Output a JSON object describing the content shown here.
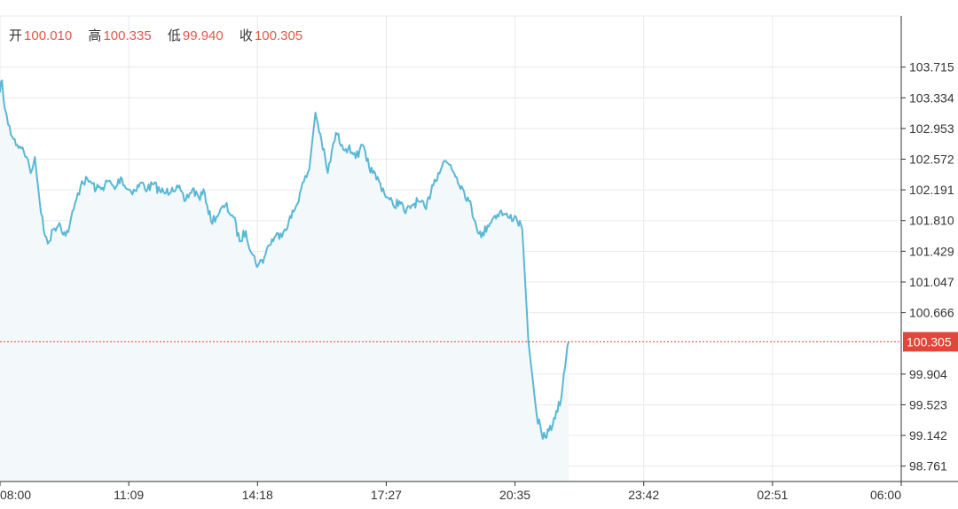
{
  "ohlc": {
    "open_label": "开",
    "open_value": "100.010",
    "high_label": "高",
    "high_value": "100.335",
    "low_label": "低",
    "low_value": "99.940",
    "close_label": "收",
    "close_value": "100.305"
  },
  "colors": {
    "line": "#5ab8d4",
    "area": "#f3f8fb",
    "grid": "#e7eaee",
    "last_price": "#e0473a",
    "axis": "#333333"
  },
  "chart_data": {
    "type": "area",
    "title": "",
    "xlabel": "",
    "ylabel": "",
    "x_tick_labels": [
      "08:00",
      "11:09",
      "14:18",
      "17:27",
      "20:35",
      "23:42",
      "02:51",
      "06:00"
    ],
    "y_tick_labels": [
      "103.715",
      "103.334",
      "102.953",
      "102.572",
      "102.191",
      "101.810",
      "101.429",
      "101.047",
      "100.666",
      "99.904",
      "99.523",
      "99.142",
      "98.761"
    ],
    "y_tick_values": [
      103.715,
      103.334,
      102.953,
      102.572,
      102.191,
      101.81,
      101.429,
      101.047,
      100.666,
      99.904,
      99.523,
      99.142,
      98.761
    ],
    "ylim": [
      98.57,
      104.35
    ],
    "x_range_hours": [
      0,
      22
    ],
    "last_price": 100.305,
    "last_price_label": "100.305",
    "grid": true,
    "series": [
      {
        "x": [
          0.0,
          0.05,
          0.12,
          0.2,
          0.3,
          0.42,
          0.55,
          0.65,
          0.75,
          0.85,
          1.0,
          1.1,
          1.2,
          1.3,
          1.45,
          1.6,
          1.7,
          1.8,
          2.0,
          2.2,
          2.35,
          2.5,
          2.65,
          2.8,
          2.95,
          3.1,
          3.3,
          3.45,
          3.6,
          3.75,
          3.9,
          4.05,
          4.2,
          4.35,
          4.5,
          4.7,
          4.85,
          5.0,
          5.15,
          5.35,
          5.5,
          5.7,
          5.85,
          6.0,
          6.15,
          6.3,
          6.45,
          6.55,
          6.7,
          6.85,
          6.95,
          7.05,
          7.2,
          7.35,
          7.55,
          7.7,
          7.85,
          8.0,
          8.2,
          8.35,
          8.5,
          8.65,
          8.75,
          8.85,
          8.95,
          9.1,
          9.25,
          9.45,
          9.6,
          9.75,
          9.9,
          10.05,
          10.2,
          10.4,
          10.55,
          10.7,
          10.85,
          11.0,
          11.15,
          11.3,
          11.45,
          11.6,
          11.75,
          11.9,
          12.05,
          12.2,
          12.4,
          12.6,
          12.75,
          12.9,
          13.1,
          13.25,
          13.4,
          13.55,
          13.7,
          13.76,
          13.82,
          13.85,
          13.88
        ],
        "y": [
          103.4,
          103.55,
          103.2,
          103.0,
          102.85,
          102.75,
          102.72,
          102.6,
          102.4,
          102.6,
          101.9,
          101.62,
          101.55,
          101.7,
          101.78,
          101.62,
          101.75,
          101.95,
          102.3,
          102.3,
          102.2,
          102.22,
          102.3,
          102.2,
          102.35,
          102.2,
          102.18,
          102.28,
          102.2,
          102.26,
          102.18,
          102.15,
          102.22,
          102.22,
          102.05,
          102.2,
          102.1,
          102.15,
          101.8,
          101.9,
          102.0,
          101.85,
          101.55,
          101.68,
          101.4,
          101.25,
          101.35,
          101.5,
          101.6,
          101.65,
          101.7,
          101.8,
          101.95,
          102.2,
          102.45,
          103.15,
          102.8,
          102.4,
          102.9,
          102.75,
          102.7,
          102.65,
          102.6,
          102.75,
          102.55,
          102.4,
          102.3,
          102.1,
          102.0,
          102.05,
          101.9,
          102.0,
          102.05,
          101.95,
          102.25,
          102.4,
          102.55,
          102.5,
          102.35,
          102.2,
          102.05,
          101.8,
          101.6,
          101.75,
          101.85,
          101.92,
          101.85,
          101.85,
          101.7,
          100.305,
          99.4,
          99.1,
          99.2,
          99.35,
          99.6,
          99.9,
          100.1,
          100.25,
          100.305
        ]
      }
    ]
  }
}
